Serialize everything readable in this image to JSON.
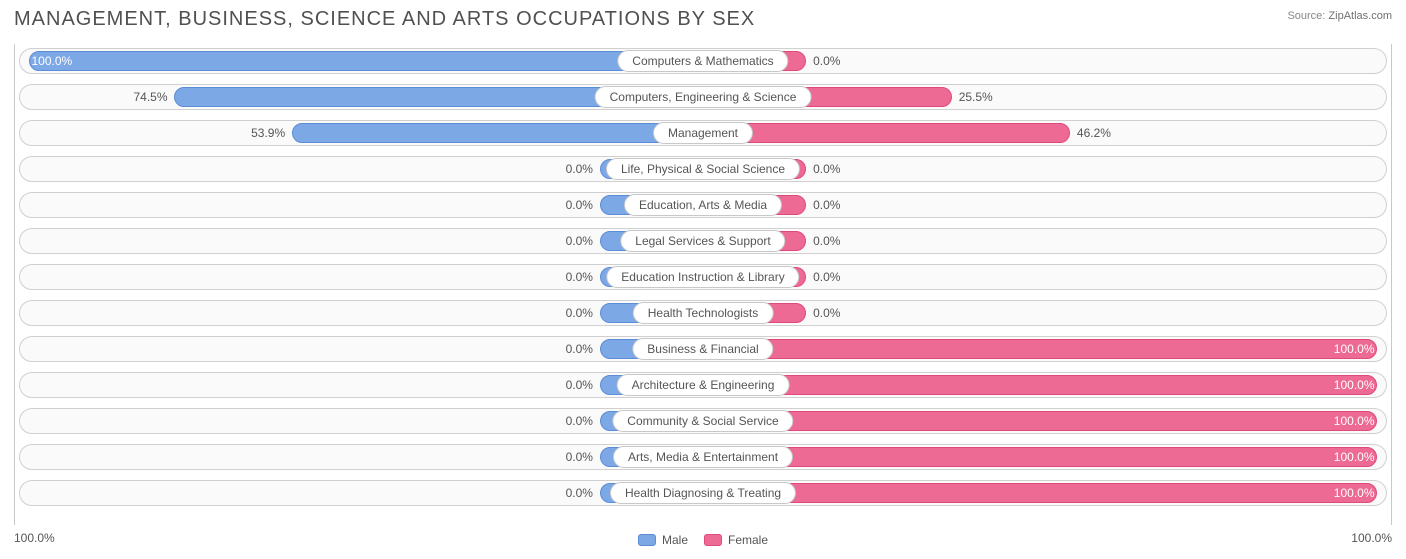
{
  "title": "MANAGEMENT, BUSINESS, SCIENCE AND ARTS OCCUPATIONS BY SEX",
  "source_label": "Source:",
  "source_value": "ZipAtlas.com",
  "colors": {
    "male_fill": "#7da8e6",
    "male_border": "#5b8cd6",
    "female_fill": "#ec6a93",
    "female_border": "#e04a7a",
    "track_bg": "#fafafa",
    "track_border": "#d0d0d0",
    "text": "#555555"
  },
  "zero_bar_pct": 7.5,
  "axis": {
    "left": "100.0%",
    "right": "100.0%"
  },
  "legend": {
    "male": "Male",
    "female": "Female"
  },
  "rows": [
    {
      "category": "Computers & Mathematics",
      "male": 100.0,
      "female": 0.0
    },
    {
      "category": "Computers, Engineering & Science",
      "male": 74.5,
      "female": 25.5
    },
    {
      "category": "Management",
      "male": 53.9,
      "female": 46.2
    },
    {
      "category": "Life, Physical & Social Science",
      "male": 0.0,
      "female": 0.0
    },
    {
      "category": "Education, Arts & Media",
      "male": 0.0,
      "female": 0.0
    },
    {
      "category": "Legal Services & Support",
      "male": 0.0,
      "female": 0.0
    },
    {
      "category": "Education Instruction & Library",
      "male": 0.0,
      "female": 0.0
    },
    {
      "category": "Health Technologists",
      "male": 0.0,
      "female": 0.0
    },
    {
      "category": "Business & Financial",
      "male": 0.0,
      "female": 100.0
    },
    {
      "category": "Architecture & Engineering",
      "male": 0.0,
      "female": 100.0
    },
    {
      "category": "Community & Social Service",
      "male": 0.0,
      "female": 100.0
    },
    {
      "category": "Arts, Media & Entertainment",
      "male": 0.0,
      "female": 100.0
    },
    {
      "category": "Health Diagnosing & Treating",
      "male": 0.0,
      "female": 100.0
    }
  ]
}
